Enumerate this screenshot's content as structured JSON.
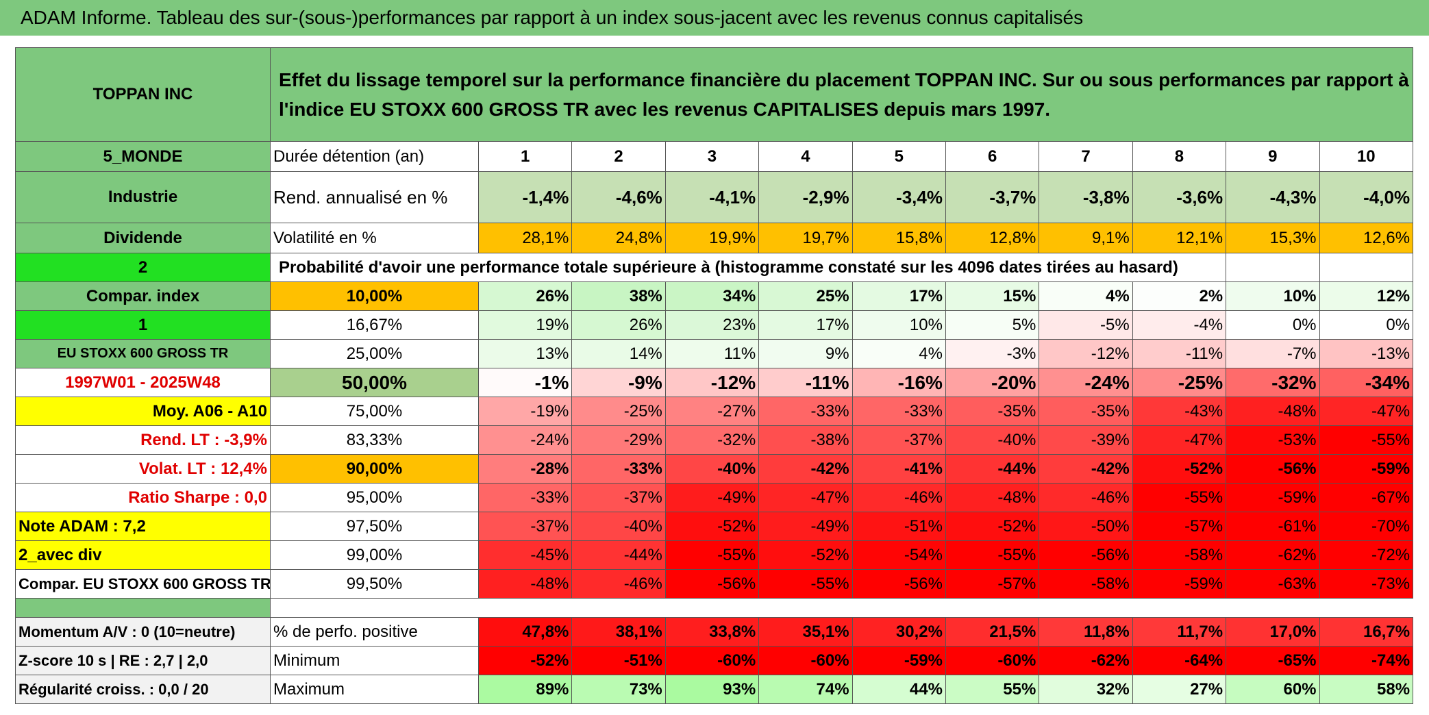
{
  "header": {
    "title": "ADAM Informe. Tableau des sur-(sous-)performances par rapport à un index sous-jacent avec les revenus connus capitalisés"
  },
  "table": {
    "rows": [
      {
        "label": "TOPPAN INC",
        "text": "Effet du lissage temporel sur la performance financière du placement TOPPAN INC. Sur ou sous performances par rapport à l'indice EU STOXX 600 GROSS TR avec les revenus CAPITALISES depuis mars 1997."
      },
      {
        "label": "5_MONDE",
        "name": "Durée détention (an)",
        "values": [
          "1",
          "2",
          "3",
          "4",
          "5",
          "6",
          "7",
          "8",
          "9",
          "10"
        ]
      },
      {
        "label": "Industrie",
        "name": "Rend. annualisé en %",
        "values": [
          "-1,4%",
          "-4,6%",
          "-4,1%",
          "-2,9%",
          "-3,4%",
          "-3,7%",
          "-3,8%",
          "-3,6%",
          "-4,3%",
          "-4,0%"
        ]
      },
      {
        "label": "Dividende",
        "name": "Volatilité en %",
        "values": [
          "28,1%",
          "24,8%",
          "19,9%",
          "19,7%",
          "15,8%",
          "12,8%",
          "9,1%",
          "12,1%",
          "15,3%",
          "12,6%"
        ]
      },
      {
        "label": "2",
        "text": "Probabilité d'avoir une performance totale supérieure à (histogramme constaté sur les 4096 dates tirées au hasard)"
      },
      {
        "label": "Compar. index",
        "name": "10,00%",
        "values": [
          "26%",
          "38%",
          "34%",
          "25%",
          "17%",
          "15%",
          "4%",
          "2%",
          "10%",
          "12%"
        ]
      },
      {
        "label": "1",
        "name": "16,67%",
        "values": [
          "19%",
          "26%",
          "23%",
          "17%",
          "10%",
          "5%",
          "-5%",
          "-4%",
          "0%",
          "0%"
        ]
      },
      {
        "label": "EU STOXX 600 GROSS TR",
        "name": "25,00%",
        "values": [
          "13%",
          "14%",
          "11%",
          "9%",
          "4%",
          "-3%",
          "-12%",
          "-11%",
          "-7%",
          "-13%"
        ]
      },
      {
        "label": "1997W01 - 2025W48",
        "name": "50,00%",
        "values": [
          "-1%",
          "-9%",
          "-12%",
          "-11%",
          "-16%",
          "-20%",
          "-24%",
          "-25%",
          "-32%",
          "-34%"
        ]
      },
      {
        "label": "Moy. A06 - A10",
        "name": "75,00%",
        "values": [
          "-19%",
          "-25%",
          "-27%",
          "-33%",
          "-33%",
          "-35%",
          "-35%",
          "-43%",
          "-48%",
          "-47%"
        ]
      },
      {
        "label": "Rend. LT :   -3,9%",
        "name": "83,33%",
        "values": [
          "-24%",
          "-29%",
          "-32%",
          "-38%",
          "-37%",
          "-40%",
          "-39%",
          "-47%",
          "-53%",
          "-55%"
        ]
      },
      {
        "label": "Volat. LT :   12,4%",
        "name": "90,00%",
        "values": [
          "-28%",
          "-33%",
          "-40%",
          "-42%",
          "-41%",
          "-44%",
          "-42%",
          "-52%",
          "-56%",
          "-59%"
        ]
      },
      {
        "label": "Ratio Sharpe :    0,0",
        "name": "95,00%",
        "values": [
          "-33%",
          "-37%",
          "-49%",
          "-47%",
          "-46%",
          "-48%",
          "-46%",
          "-55%",
          "-59%",
          "-67%"
        ]
      },
      {
        "label": "Note ADAM : 7,2",
        "name": "97,50%",
        "values": [
          "-37%",
          "-40%",
          "-52%",
          "-49%",
          "-51%",
          "-52%",
          "-50%",
          "-57%",
          "-61%",
          "-70%"
        ]
      },
      {
        "label": "2_avec div",
        "name": "99,00%",
        "values": [
          "-45%",
          "-44%",
          "-55%",
          "-52%",
          "-54%",
          "-55%",
          "-56%",
          "-58%",
          "-62%",
          "-72%"
        ]
      },
      {
        "label": "Compar. EU STOXX 600 GROSS TR",
        "name": "99,50%",
        "values": [
          "-48%",
          "-46%",
          "-56%",
          "-55%",
          "-56%",
          "-57%",
          "-58%",
          "-59%",
          "-63%",
          "-73%"
        ]
      }
    ]
  },
  "summary": {
    "rows": [
      {
        "label": "Momentum A/V : 0 (10=neutre)",
        "name": "% de perfo. positive",
        "values": [
          "47,8%",
          "38,1%",
          "33,8%",
          "35,1%",
          "30,2%",
          "21,5%",
          "11,8%",
          "11,7%",
          "17,0%",
          "16,7%"
        ]
      },
      {
        "label": "Z-score 10 s | RE : 2,7 | 2,0",
        "name": "Minimum",
        "values": [
          "-52%",
          "-51%",
          "-60%",
          "-60%",
          "-59%",
          "-60%",
          "-62%",
          "-64%",
          "-65%",
          "-74%"
        ]
      },
      {
        "label": "Régularité croiss. : 0,0 / 20",
        "name": "Maximum",
        "values": [
          "89%",
          "73%",
          "93%",
          "74%",
          "44%",
          "55%",
          "32%",
          "27%",
          "60%",
          "58%"
        ]
      }
    ]
  }
}
